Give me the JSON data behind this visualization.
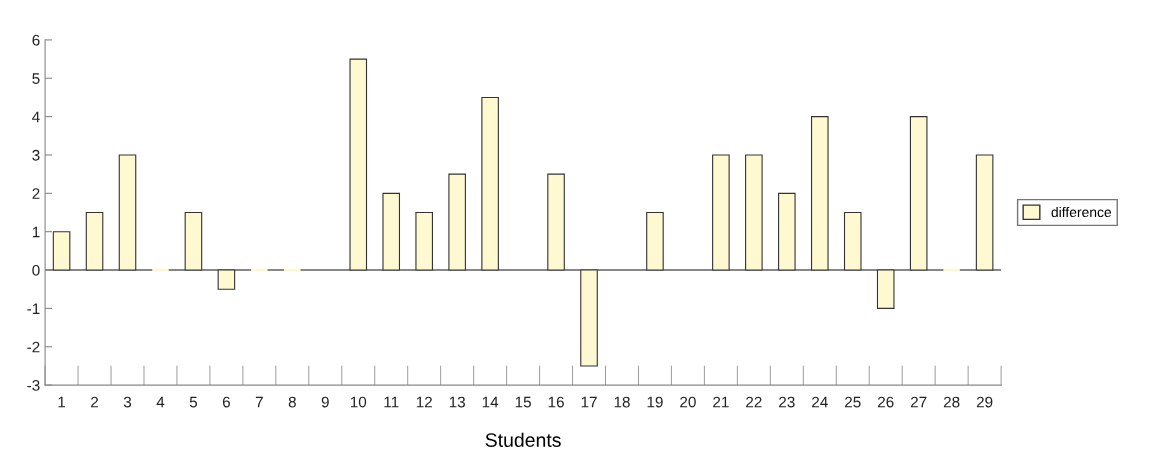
{
  "chart_data": {
    "type": "bar",
    "xlabel": "Students",
    "categories": [
      "1",
      "2",
      "3",
      "4",
      "5",
      "6",
      "7",
      "8",
      "9",
      "10",
      "11",
      "12",
      "13",
      "14",
      "15",
      "16",
      "17",
      "18",
      "19",
      "20",
      "21",
      "22",
      "23",
      "24",
      "25",
      "26",
      "27",
      "28",
      "29"
    ],
    "series": [
      {
        "name": "difference",
        "color": "#fff9d2",
        "values": [
          1,
          1.5,
          3,
          0,
          1.5,
          -0.5,
          0,
          0,
          null,
          5.5,
          2,
          1.5,
          2.5,
          4.5,
          null,
          2.5,
          -2.5,
          null,
          1.5,
          null,
          3,
          3,
          2,
          4,
          1.5,
          -1,
          4,
          0,
          3
        ]
      }
    ],
    "ylim": [
      -3,
      6
    ],
    "yticks": [
      -3,
      -2,
      -1,
      0,
      1,
      2,
      3,
      4,
      5,
      6
    ],
    "ref_lines": [
      {
        "axis": "y",
        "value": 0,
        "color": "#888888"
      }
    ],
    "grid": false,
    "legend": "right"
  }
}
